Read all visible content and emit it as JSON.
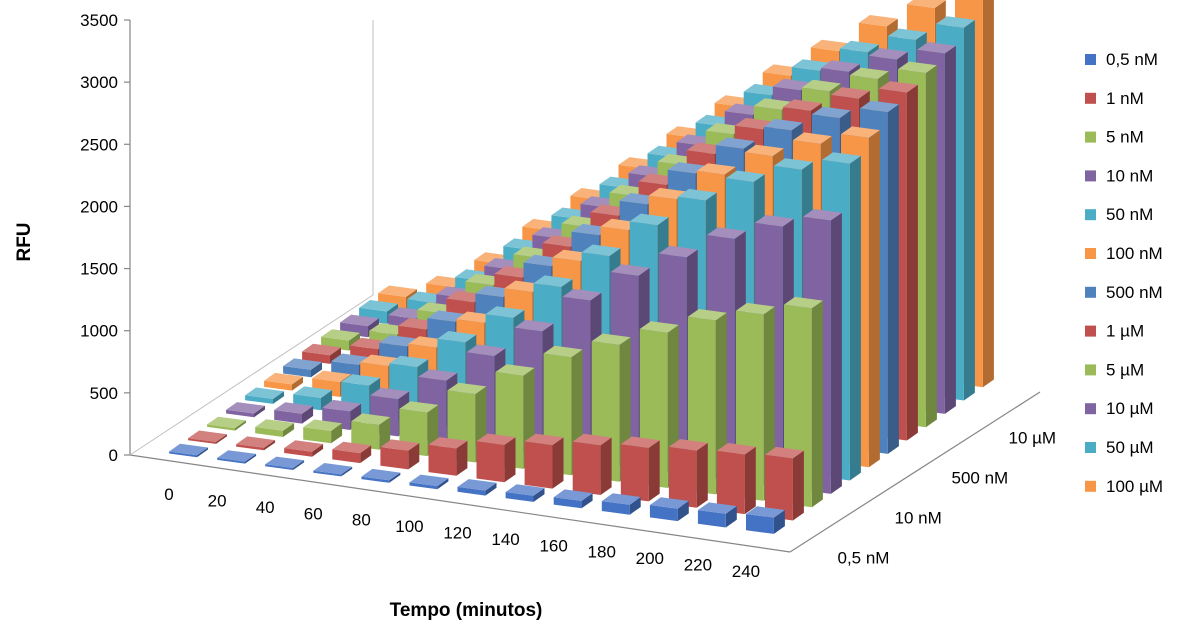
{
  "chart_data": {
    "type": "bar",
    "subtype": "3d-column",
    "xlabel": "Tempo (minutos)",
    "ylabel": "RFU",
    "ylim": [
      0,
      3500
    ],
    "yticks": [
      "0",
      "500",
      "1000",
      "1500",
      "2000",
      "2500",
      "3000",
      "3500"
    ],
    "categories": [
      "0",
      "20",
      "40",
      "60",
      "80",
      "100",
      "120",
      "140",
      "160",
      "180",
      "200",
      "220",
      "240"
    ],
    "depth_tick_labels": [
      "0,5 nM",
      "10 nM",
      "500 nM",
      "10 µM"
    ],
    "legend_position": "right",
    "grid": false,
    "series": [
      {
        "name": "0,5 nM",
        "color": "#4472c4",
        "values": [
          5,
          8,
          10,
          15,
          20,
          25,
          40,
          50,
          60,
          80,
          100,
          110,
          130
        ]
      },
      {
        "name": "1 nM",
        "color": "#c0504d",
        "values": [
          10,
          20,
          40,
          80,
          150,
          220,
          300,
          350,
          400,
          430,
          460,
          480,
          500
        ]
      },
      {
        "name": "5 nM",
        "color": "#9bbb59",
        "values": [
          20,
          50,
          100,
          200,
          350,
          550,
          750,
          950,
          1100,
          1250,
          1400,
          1500,
          1600
        ]
      },
      {
        "name": "10 nM",
        "color": "#8064a2",
        "values": [
          30,
          80,
          150,
          300,
          500,
          750,
          1000,
          1300,
          1550,
          1750,
          1950,
          2100,
          2200
        ]
      },
      {
        "name": "50 nM",
        "color": "#4bacc6",
        "values": [
          40,
          100,
          250,
          450,
          700,
          950,
          1250,
          1550,
          1850,
          2100,
          2300,
          2450,
          2550
        ]
      },
      {
        "name": "100 nM",
        "color": "#f79646",
        "values": [
          50,
          120,
          300,
          500,
          750,
          1050,
          1350,
          1650,
          1950,
          2200,
          2400,
          2550,
          2650
        ]
      },
      {
        "name": "500 nM",
        "color": "#4f81bd",
        "values": [
          60,
          150,
          350,
          600,
          850,
          1150,
          1450,
          1750,
          2050,
          2300,
          2500,
          2650,
          2750
        ]
      },
      {
        "name": "1 µM",
        "color": "#c0504d",
        "values": [
          70,
          170,
          380,
          650,
          900,
          1200,
          1500,
          1800,
          2100,
          2350,
          2550,
          2700,
          2800
        ]
      },
      {
        "name": "5 µM",
        "color": "#9bbb59",
        "values": [
          80,
          180,
          400,
          680,
          950,
          1250,
          1550,
          1850,
          2150,
          2400,
          2600,
          2750,
          2850
        ]
      },
      {
        "name": "10 µM",
        "color": "#8064a2",
        "values": [
          90,
          200,
          420,
          700,
          1000,
          1300,
          1600,
          1900,
          2200,
          2450,
          2650,
          2800,
          2900
        ]
      },
      {
        "name": "50 µM",
        "color": "#4bacc6",
        "values": [
          100,
          220,
          450,
          750,
          1050,
          1350,
          1650,
          1950,
          2250,
          2500,
          2700,
          2850,
          3000
        ]
      },
      {
        "name": "100 µM",
        "color": "#f79646",
        "values": [
          110,
          240,
          480,
          800,
          1100,
          1400,
          1700,
          2000,
          2300,
          2550,
          2800,
          3000,
          3200
        ]
      }
    ]
  }
}
